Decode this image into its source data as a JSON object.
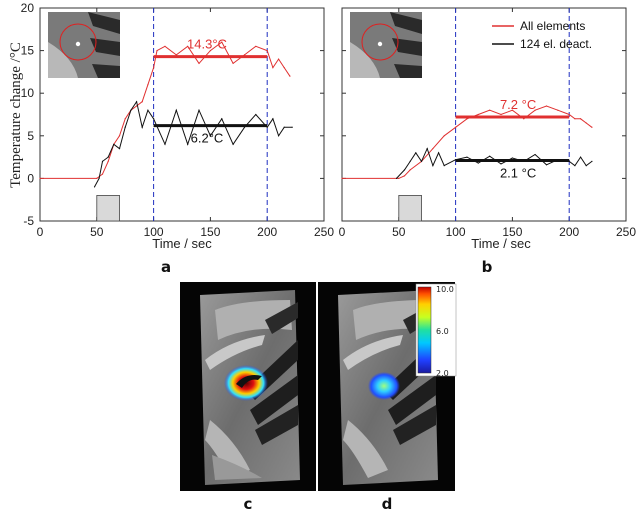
{
  "chart_data": [
    {
      "panel": "a",
      "type": "line",
      "ylabel": "Temperature change /°C",
      "xlabel": "Time / sec",
      "xlim": [
        0,
        250
      ],
      "ylim": [
        -5,
        20
      ],
      "xticks": [
        "0",
        "50",
        "100",
        "150",
        "200",
        "250"
      ],
      "yticks": [
        "-5",
        "0",
        "5",
        "10",
        "15",
        "20"
      ],
      "vlines": [
        100,
        200
      ],
      "heating_interval": [
        50,
        70
      ],
      "series": [
        {
          "color": "#e03030",
          "values": [
            [
              0,
              0
            ],
            [
              50,
              0
            ],
            [
              55,
              0.5
            ],
            [
              60,
              2
            ],
            [
              65,
              4
            ],
            [
              70,
              5
            ],
            [
              75,
              7
            ],
            [
              80,
              8
            ],
            [
              85,
              8.5
            ],
            [
              90,
              9
            ],
            [
              95,
              11
            ],
            [
              100,
              13
            ],
            [
              103,
              15
            ],
            [
              110,
              15.5
            ],
            [
              120,
              14.5
            ],
            [
              130,
              15.5
            ],
            [
              140,
              13.5
            ],
            [
              150,
              15
            ],
            [
              160,
              16
            ],
            [
              170,
              13.5
            ],
            [
              180,
              14.5
            ],
            [
              190,
              15.5
            ],
            [
              200,
              15
            ],
            [
              205,
              13
            ],
            [
              210,
              14
            ],
            [
              215,
              13
            ],
            [
              220,
              12
            ]
          ]
        },
        {
          "color": "#111111",
          "values": [
            [
              48,
              -1
            ],
            [
              52,
              0
            ],
            [
              55,
              2
            ],
            [
              60,
              2.5
            ],
            [
              65,
              4
            ],
            [
              70,
              3.5
            ],
            [
              75,
              6
            ],
            [
              80,
              8
            ],
            [
              85,
              9
            ],
            [
              90,
              6
            ],
            [
              95,
              8
            ],
            [
              100,
              7
            ],
            [
              110,
              4
            ],
            [
              120,
              8
            ],
            [
              130,
              4
            ],
            [
              140,
              8
            ],
            [
              150,
              5
            ],
            [
              160,
              7
            ],
            [
              170,
              4
            ],
            [
              180,
              6
            ],
            [
              190,
              7.5
            ],
            [
              200,
              6
            ],
            [
              205,
              7
            ],
            [
              210,
              5
            ],
            [
              215,
              6
            ],
            [
              222,
              6
            ]
          ]
        }
      ],
      "means": [
        {
          "x": [
            100,
            200
          ],
          "y": 14.3,
          "label": "14.3°C",
          "color": "#e03030"
        },
        {
          "x": [
            100,
            200
          ],
          "y": 6.2,
          "label": "6.2°C",
          "color": "#111111"
        }
      ]
    },
    {
      "panel": "b",
      "type": "line",
      "xlabel": "Time / sec",
      "xlim": [
        0,
        250
      ],
      "ylim": [
        -5,
        20
      ],
      "xticks": [
        "0",
        "50",
        "100",
        "150",
        "200",
        "250"
      ],
      "vlines": [
        100,
        200
      ],
      "heating_interval": [
        50,
        70
      ],
      "legend": [
        {
          "label": "All elements",
          "color": "#e03030"
        },
        {
          "label": "124 el. deact.",
          "color": "#111111"
        }
      ],
      "series": [
        {
          "color": "#e03030",
          "values": [
            [
              0,
              0
            ],
            [
              50,
              0
            ],
            [
              55,
              0.3
            ],
            [
              60,
              1
            ],
            [
              70,
              2
            ],
            [
              80,
              3.5
            ],
            [
              90,
              5
            ],
            [
              100,
              6
            ],
            [
              110,
              7
            ],
            [
              120,
              7.5
            ],
            [
              130,
              8
            ],
            [
              140,
              7.5
            ],
            [
              150,
              8
            ],
            [
              160,
              7
            ],
            [
              170,
              8
            ],
            [
              180,
              8.5
            ],
            [
              190,
              8
            ],
            [
              200,
              7.5
            ],
            [
              205,
              7
            ],
            [
              210,
              7
            ],
            [
              215,
              6.5
            ],
            [
              220,
              6
            ]
          ]
        },
        {
          "color": "#111111",
          "values": [
            [
              48,
              0
            ],
            [
              55,
              1
            ],
            [
              60,
              2
            ],
            [
              65,
              3
            ],
            [
              70,
              2
            ],
            [
              75,
              3.5
            ],
            [
              80,
              1.5
            ],
            [
              85,
              3
            ],
            [
              90,
              1.5
            ],
            [
              100,
              2.2
            ],
            [
              110,
              2.5
            ],
            [
              120,
              1.8
            ],
            [
              130,
              2.6
            ],
            [
              140,
              1.7
            ],
            [
              150,
              2.4
            ],
            [
              160,
              2
            ],
            [
              170,
              2.8
            ],
            [
              180,
              1.6
            ],
            [
              190,
              2.2
            ],
            [
              200,
              2
            ],
            [
              205,
              1.5
            ],
            [
              210,
              2.5
            ],
            [
              215,
              1.5
            ],
            [
              220,
              2
            ]
          ]
        }
      ],
      "means": [
        {
          "x": [
            100,
            200
          ],
          "y": 7.2,
          "label": "7.2 °C",
          "color": "#e03030"
        },
        {
          "x": [
            100,
            200
          ],
          "y": 2.1,
          "label": "2.1 °C",
          "color": "#111111"
        }
      ]
    }
  ],
  "images": {
    "c_label": "c",
    "d_label": "d",
    "colorbar": {
      "min": "2.0",
      "mid": "6.0",
      "max": "10.0",
      "tick8": "8.0",
      "tick4": "4.0"
    }
  }
}
